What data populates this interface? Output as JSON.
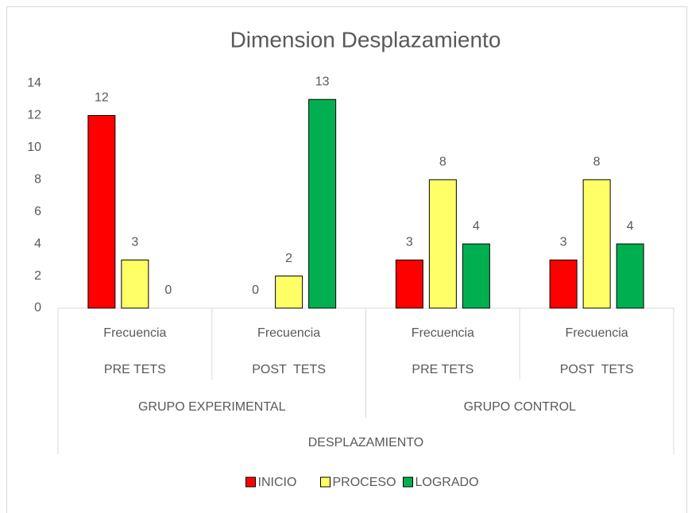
{
  "chart_data": {
    "type": "bar",
    "title": "Dimension Desplazamiento",
    "categories": [
      "Frecuencia",
      "Frecuencia",
      "Frecuencia",
      "Frecuencia"
    ],
    "subcategories": [
      "PRE TETS",
      "POST  TETS",
      "PRE TETS",
      "POST  TETS"
    ],
    "groups": [
      "GRUPO EXPERIMENTAL",
      "GRUPO CONTROL"
    ],
    "supergroup": "DESPLAZAMIENTO",
    "series": [
      {
        "name": "INICIO",
        "color": "#ff0000",
        "values": [
          12,
          0,
          3,
          3
        ]
      },
      {
        "name": "PROCESO",
        "color": "#ffff66",
        "values": [
          3,
          2,
          8,
          8
        ]
      },
      {
        "name": "LOGRADO",
        "color": "#00b050",
        "values": [
          0,
          13,
          4,
          4
        ]
      }
    ],
    "ylim": [
      0,
      14
    ],
    "yticks": [
      0,
      2,
      4,
      6,
      8,
      10,
      12,
      14
    ],
    "grid": false,
    "legend": "bottom"
  }
}
